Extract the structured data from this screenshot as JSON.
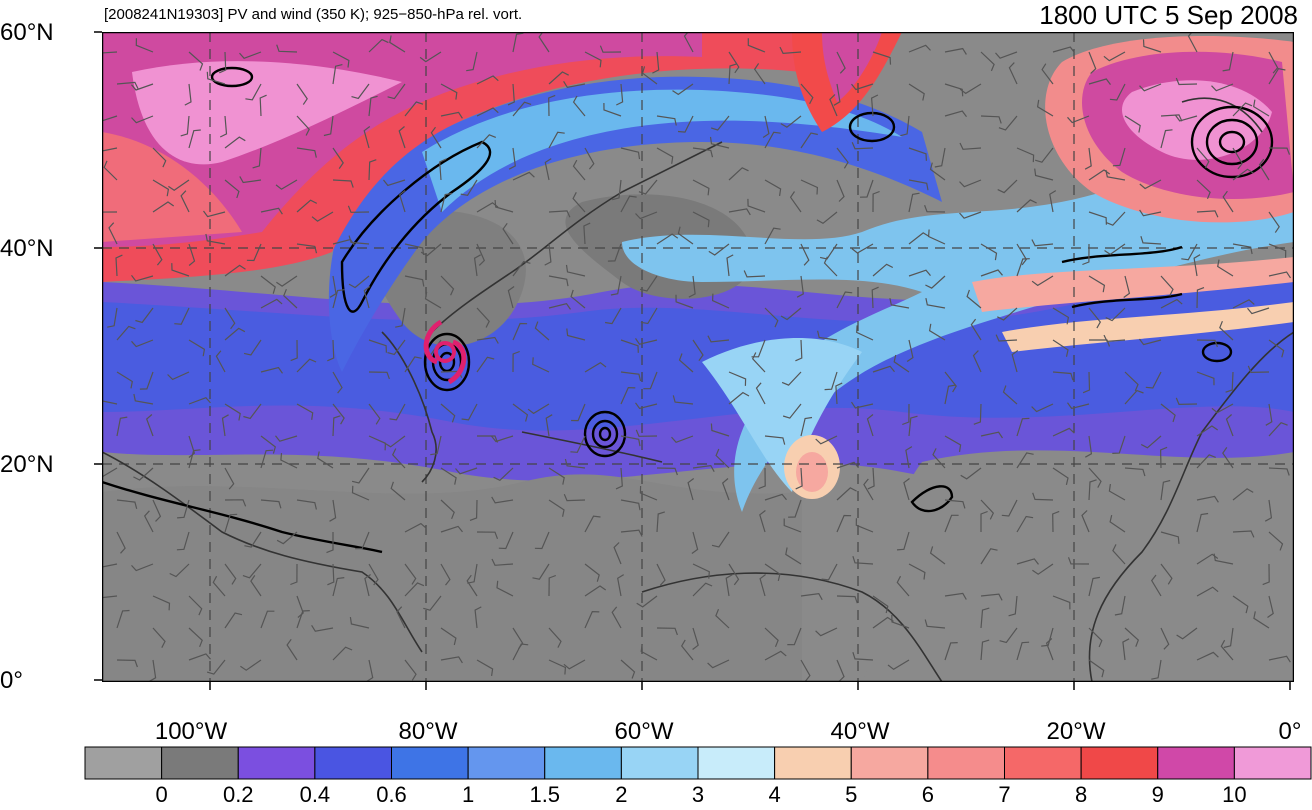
{
  "header": {
    "left": "[2008241N19303] PV and wind (350 K); 925−850-hPa rel. vort.",
    "right": "1800 UTC 5 Sep 2008"
  },
  "map": {
    "lat_labels": [
      "60°N",
      "40°N",
      "20°N",
      "0°"
    ],
    "lon_labels": [
      "100°W",
      "80°W",
      "60°W",
      "40°W",
      "20°W",
      "0°"
    ],
    "storm_symbol": "tropical-cyclone-icon",
    "storm_color": "#e0206e"
  },
  "colorbar": {
    "colors": [
      "#a0a0a0",
      "#7a7a7a",
      "#7b4fe0",
      "#4a55e2",
      "#3e74e6",
      "#6496ee",
      "#6ab8ee",
      "#98d4f5",
      "#c8ecfa",
      "#f8cfb0",
      "#f6a8a0",
      "#f58c8c",
      "#f56868",
      "#f04848",
      "#d048a8",
      "#f09ad8"
    ],
    "labels": [
      "0",
      "0.2",
      "0.4",
      "0.6",
      "1",
      "1.5",
      "2",
      "3",
      "4",
      "5",
      "6",
      "7",
      "8",
      "9",
      "10"
    ]
  }
}
